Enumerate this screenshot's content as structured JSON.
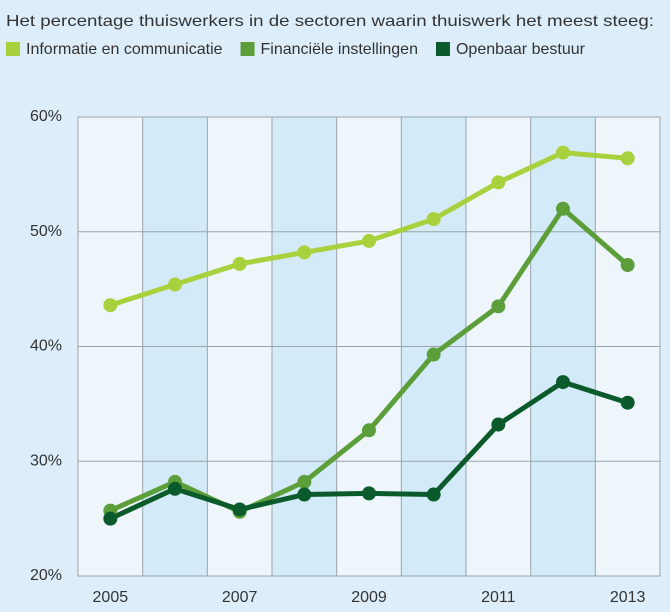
{
  "chart_data": {
    "type": "line",
    "title": "Het percentage thuiswerkers in de sectoren waarin thuiswerk het meest steeg:",
    "x": [
      2005,
      2006,
      2007,
      2008,
      2009,
      2010,
      2011,
      2012,
      2013
    ],
    "xlim": [
      2004.5,
      2013.5
    ],
    "xticks": [
      2005,
      2007,
      2009,
      2011,
      2013
    ],
    "ylim": [
      20,
      60
    ],
    "yticks": [
      {
        "value": 20,
        "label": "20%"
      },
      {
        "value": 30,
        "label": "30%"
      },
      {
        "value": 40,
        "label": "40%"
      },
      {
        "value": 50,
        "label": "50%"
      },
      {
        "value": 60,
        "label": "60%"
      }
    ],
    "grid": true,
    "series": [
      {
        "name": "Informatie en communicatie",
        "color": "#a9d13d",
        "values": [
          43.6,
          45.4,
          47.2,
          48.2,
          49.2,
          51.1,
          54.3,
          56.9,
          56.4
        ]
      },
      {
        "name": "Financiële instellingen",
        "color": "#5c9e3a",
        "values": [
          25.7,
          28.2,
          25.6,
          28.2,
          32.7,
          39.3,
          43.5,
          52.0,
          47.1
        ]
      },
      {
        "name": "Openbaar bestuur",
        "color": "#0b5a2b",
        "values": [
          25.0,
          27.6,
          25.8,
          27.1,
          27.2,
          27.1,
          33.2,
          36.9,
          35.1
        ]
      }
    ]
  }
}
